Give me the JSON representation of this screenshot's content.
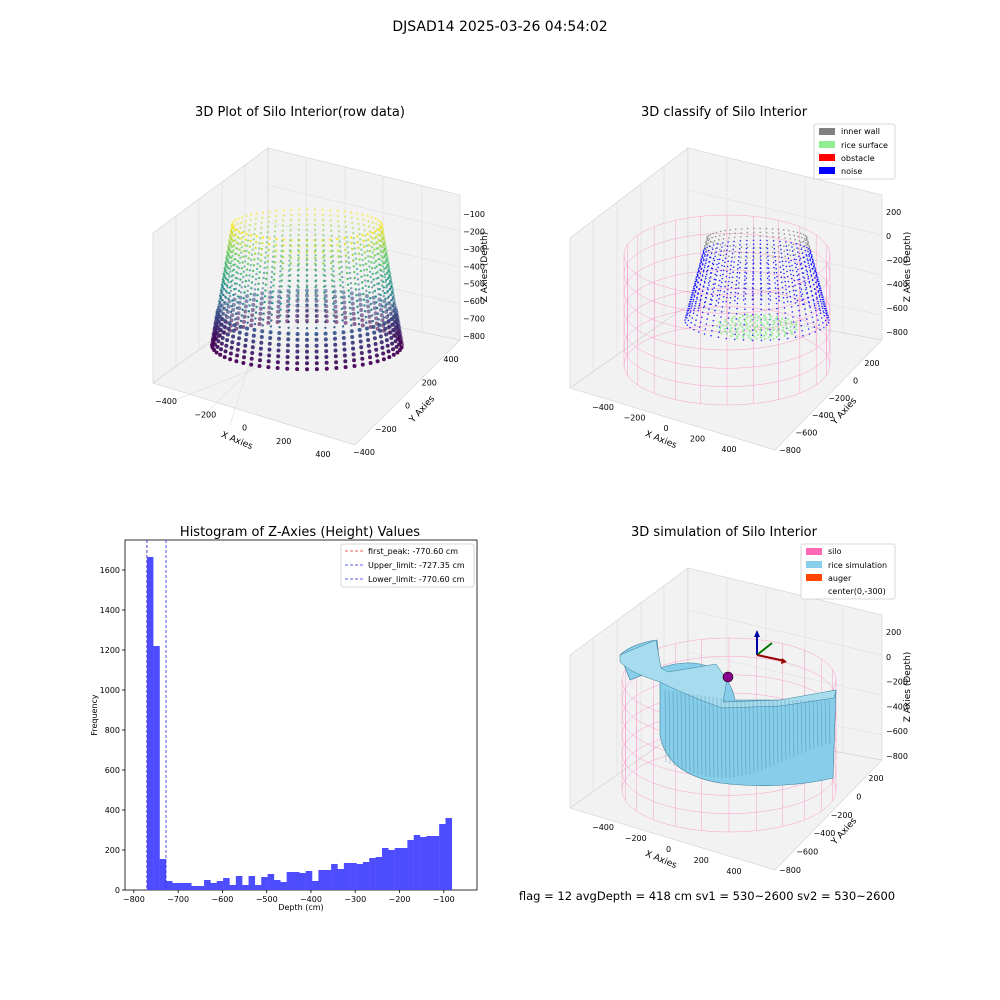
{
  "suptitle": "DJSAD14 2025-03-26 04:54:02",
  "info_line": "flag = 12   avgDepth = 418 cm  sv1 = 530~2600  sv2 = 530~2600",
  "colors": {
    "histogram_bar": "#4d4dff",
    "first_peak": "#e0302a",
    "limits": "#2a2ae0",
    "inner_wall": "#808080",
    "rice_surface": "#90ee90",
    "obstacle": "#ff0000",
    "noise": "#0000ff",
    "silo": "#ff69b4",
    "rice_simulation": "#87ceeb",
    "auger": "#ff4500"
  },
  "chart_data": [
    {
      "type": "scatter",
      "projection": "3d",
      "title": "3D Plot of Silo Interior(row data)",
      "xlabel": "X Axies",
      "ylabel": "Y Axies",
      "zlabel": "Z Axies (Depth)",
      "xticks": [
        "−400",
        "−200",
        "0",
        "200",
        "400"
      ],
      "yticks": [
        "−400",
        "−200",
        "0",
        "200",
        "400"
      ],
      "zticks": [
        "−100",
        "−200",
        "−300",
        "−400",
        "−500",
        "−600",
        "−700",
        "−800"
      ],
      "colormap": "viridis"
    },
    {
      "type": "scatter",
      "projection": "3d",
      "title": "3D classify of Silo Interior",
      "xlabel": "X Axies",
      "ylabel": "Y Axies",
      "zlabel": "Z Axies (Depth)",
      "xticks": [
        "−400",
        "−200",
        "0",
        "200",
        "400"
      ],
      "yticks": [
        "200",
        "0",
        "−200",
        "−400",
        "−600",
        "−800"
      ],
      "zticks": [
        "200",
        "0",
        "−200",
        "−400",
        "−600",
        "−800"
      ],
      "legend": [
        "inner wall",
        "rice surface",
        "obstacle",
        "noise"
      ],
      "legend_position": "top-right"
    },
    {
      "type": "bar",
      "title": "Histogram of Z-Axies (Height) Values",
      "xlabel": "Depth (cm)",
      "ylabel": "Frequency",
      "xlim": [
        -820,
        -25
      ],
      "ylim": [
        0,
        1750
      ],
      "xticks": [
        -800,
        -700,
        -600,
        -500,
        -400,
        -300,
        -200,
        -100
      ],
      "xtick_labels": [
        "−800",
        "−700",
        "−600",
        "−500",
        "−400",
        "−300",
        "−200",
        "−100"
      ],
      "yticks": [
        0,
        200,
        400,
        600,
        800,
        1000,
        1200,
        1400,
        1600
      ],
      "bin_start": -770.6,
      "bin_width": 14.35,
      "values": [
        1665,
        1220,
        155,
        45,
        35,
        35,
        35,
        20,
        20,
        50,
        35,
        45,
        60,
        25,
        70,
        25,
        70,
        25,
        65,
        80,
        50,
        40,
        90,
        90,
        85,
        95,
        45,
        100,
        100,
        130,
        105,
        135,
        135,
        130,
        140,
        160,
        165,
        210,
        200,
        210,
        210,
        250,
        275,
        265,
        270,
        270,
        330,
        360
      ],
      "legend_position": "top-right",
      "lines": [
        {
          "label": "first_peak: -770.60 cm",
          "x": -770.6,
          "style": "dashed",
          "color_key": "first_peak"
        },
        {
          "label": "Upper_limit: -727.35 cm",
          "x": -727.35,
          "style": "dashed",
          "color_key": "limits"
        },
        {
          "label": "Lower_limit: -770.60 cm",
          "x": -770.6,
          "style": "dashed",
          "color_key": "limits"
        }
      ]
    },
    {
      "type": "surface",
      "projection": "3d",
      "title": "3D simulation of Silo Interior",
      "xlabel": "X Axies",
      "ylabel": "Y Axies",
      "zlabel": "Z Axies (Depth)",
      "xticks": [
        "−400",
        "−200",
        "0",
        "200",
        "400"
      ],
      "yticks": [
        "200",
        "0",
        "−200",
        "−400",
        "−600",
        "−800"
      ],
      "zticks": [
        "200",
        "0",
        "−200",
        "−400",
        "−600",
        "−800"
      ],
      "legend": [
        "silo",
        "rice simulation",
        "auger",
        "center(0,-300)"
      ],
      "legend_position": "top-right"
    }
  ]
}
